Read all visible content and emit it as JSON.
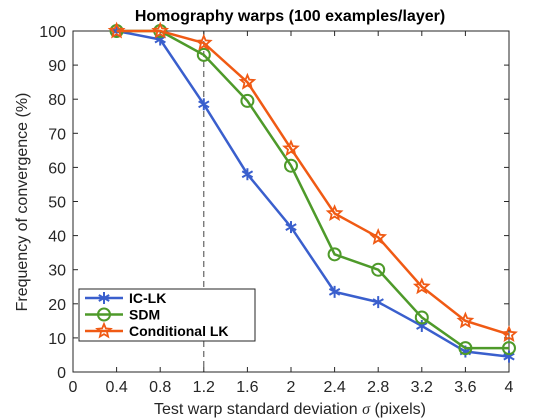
{
  "chart_data": {
    "type": "line",
    "title": "Homography warps (100 examples/layer)",
    "xlabel": "Test warp standard deviation σ (pixels)",
    "xlabel_parts": {
      "before": "Test warp standard deviation ",
      "symbol": "σ",
      "after": " (pixels)"
    },
    "ylabel": "Frequency of convergence (%)",
    "xlim": [
      0,
      4
    ],
    "ylim": [
      0,
      100
    ],
    "xticks": [
      0,
      0.4,
      0.8,
      1.2,
      1.6,
      2,
      2.4,
      2.8,
      3.2,
      3.6,
      4
    ],
    "xtick_labels": [
      "0",
      "0.4",
      "0.8",
      "1.2",
      "1.6",
      "2",
      "2.4",
      "2.8",
      "3.2",
      "3.6",
      "4"
    ],
    "yticks": [
      0,
      10,
      20,
      30,
      40,
      50,
      60,
      70,
      80,
      90,
      100
    ],
    "ytick_labels": [
      "0",
      "10",
      "20",
      "30",
      "40",
      "50",
      "60",
      "70",
      "80",
      "90",
      "100"
    ],
    "grid": false,
    "reference_line": {
      "x": 1.2,
      "style": "dashed"
    },
    "legend_position": "bottom-left",
    "x": [
      0.4,
      0.8,
      1.2,
      1.6,
      2.0,
      2.4,
      2.8,
      3.2,
      3.6,
      4.0
    ],
    "series": [
      {
        "name": "IC-LK",
        "color": "#3a5fcd",
        "marker": "asterisk",
        "values": [
          100,
          97.5,
          78.5,
          58,
          42.5,
          23.5,
          20.5,
          13.5,
          6,
          4.5
        ]
      },
      {
        "name": "SDM",
        "color": "#4e9a2a",
        "marker": "circle",
        "values": [
          100,
          100,
          93,
          79.5,
          60.5,
          34.5,
          30,
          16,
          7,
          7
        ]
      },
      {
        "name": "Conditional LK",
        "color": "#f05a14",
        "marker": "star",
        "values": [
          100,
          100,
          96.5,
          85,
          65.5,
          46.5,
          39.5,
          25,
          15,
          11
        ]
      }
    ]
  }
}
